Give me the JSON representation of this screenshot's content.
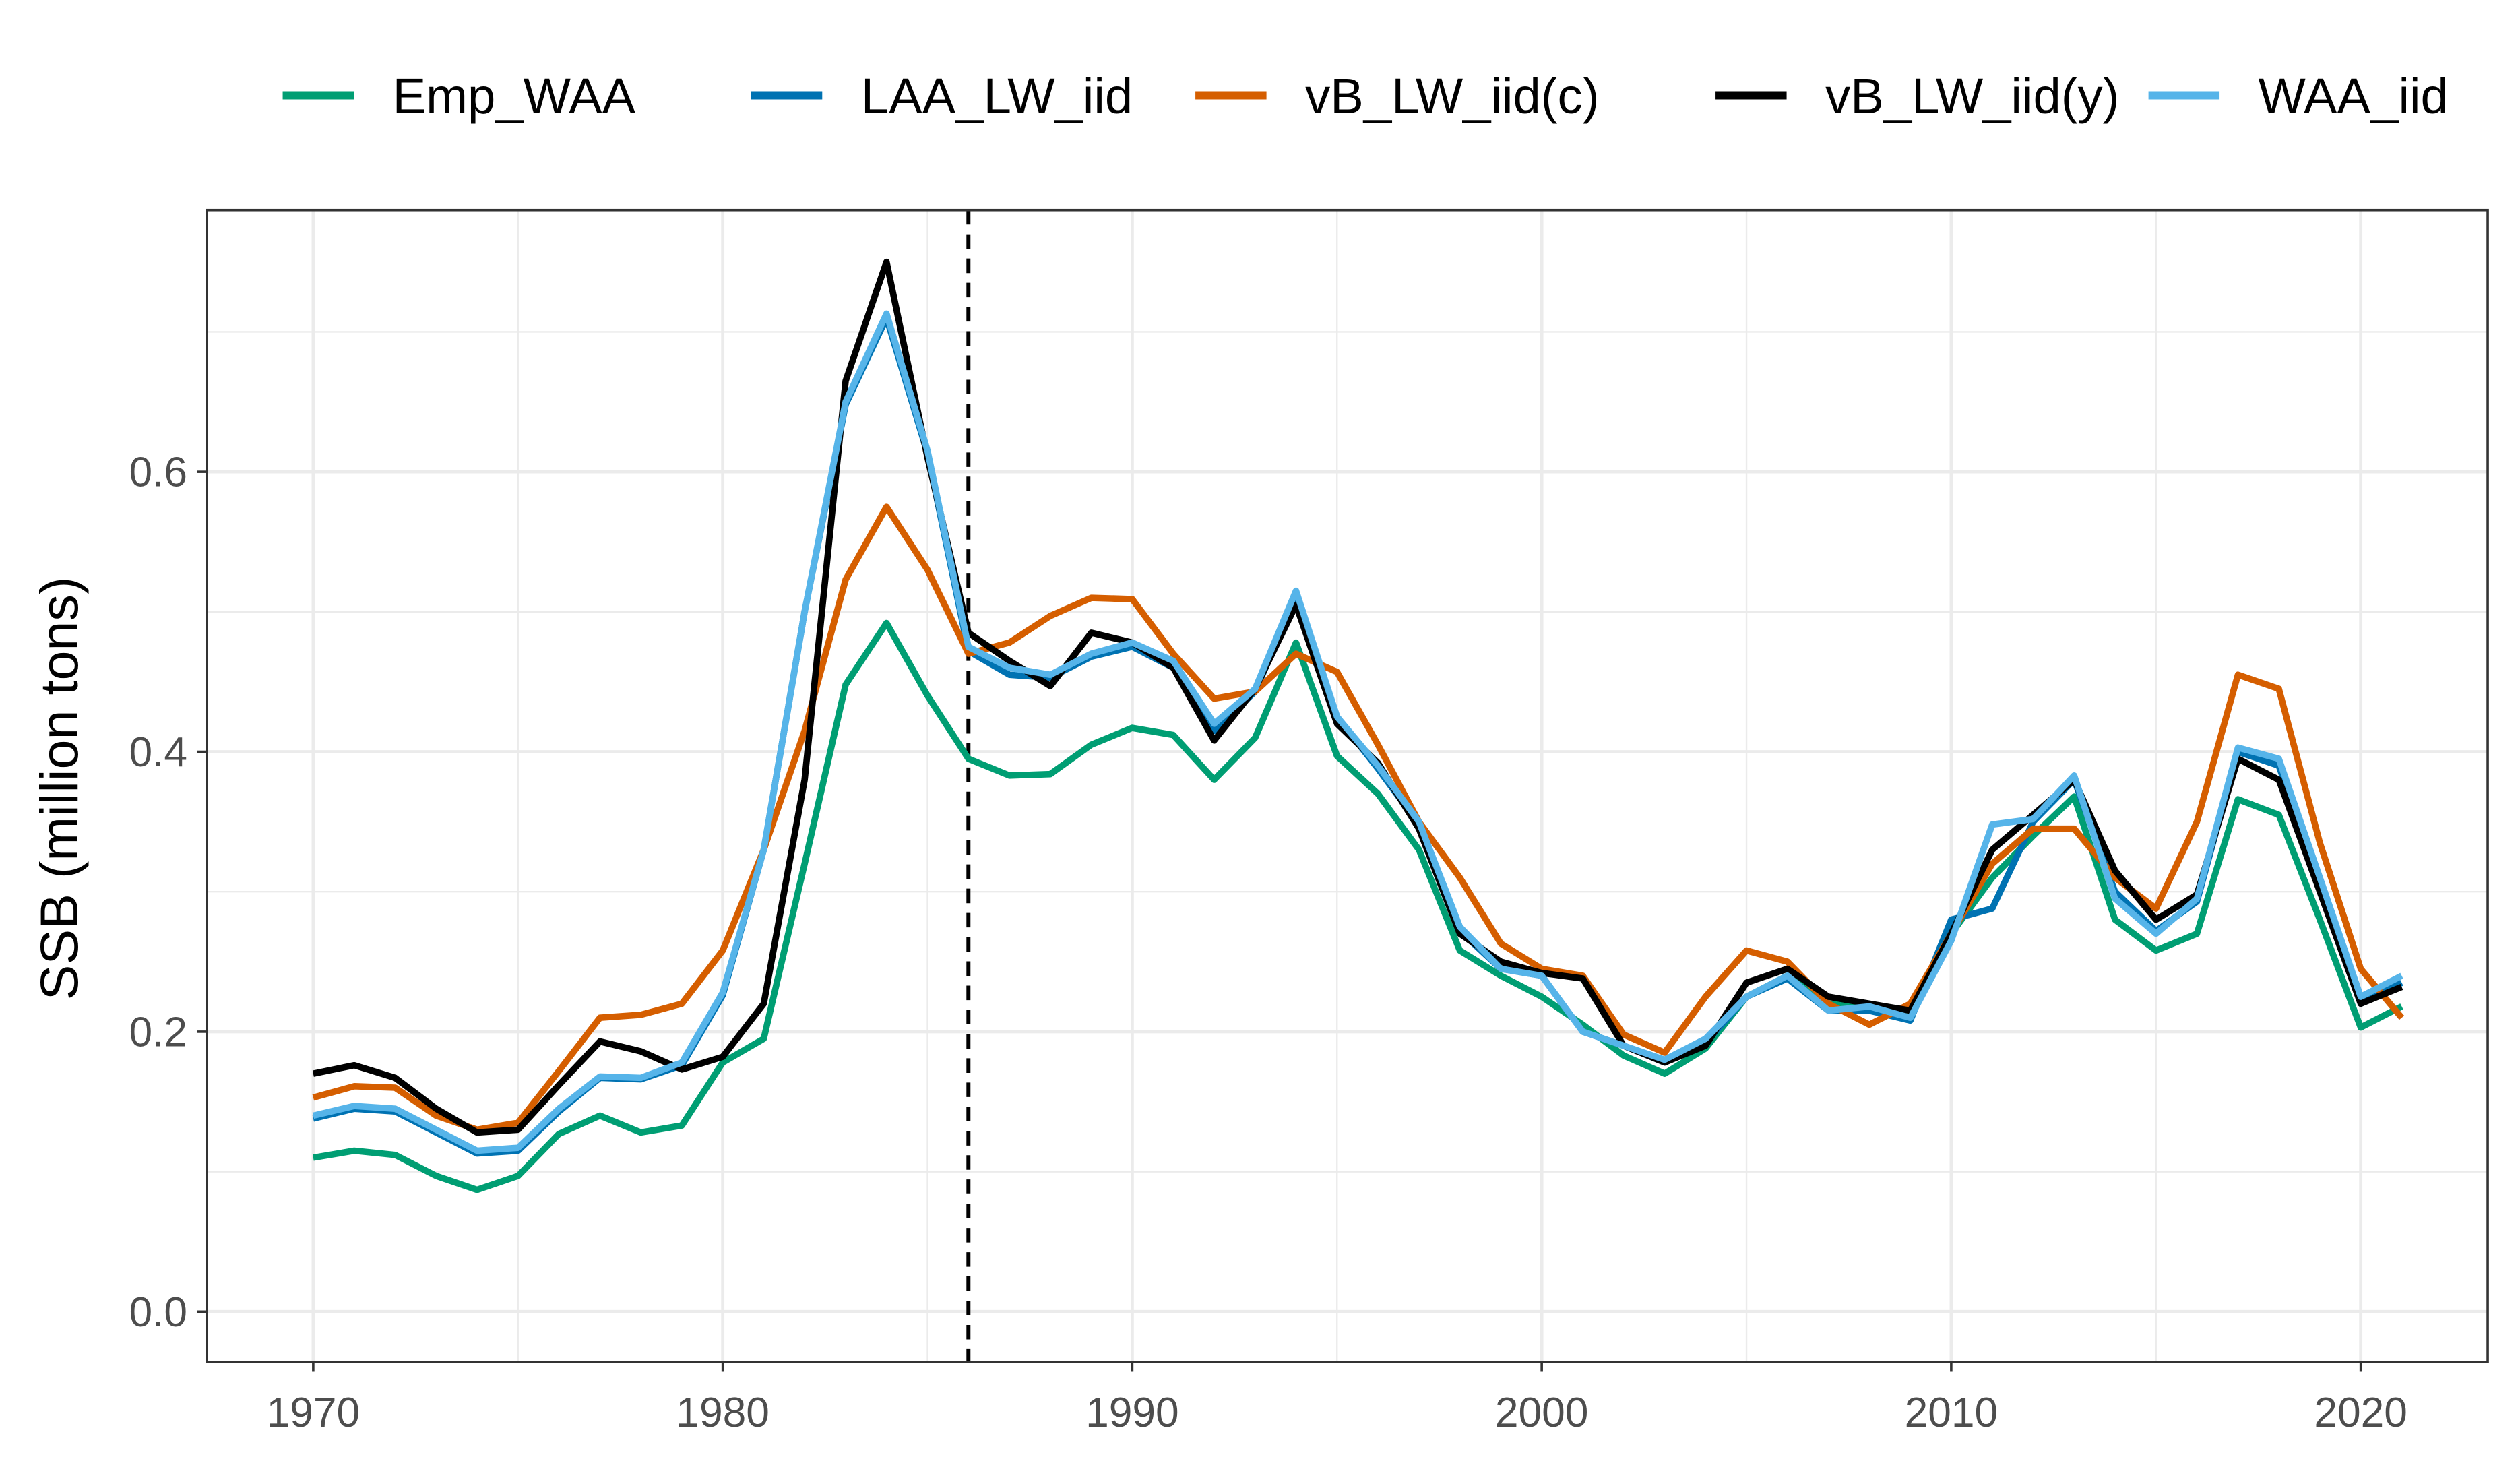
{
  "chart_data": {
    "type": "line",
    "title": "",
    "xlabel": "",
    "ylabel": "SSB (million tons)",
    "xlim": [
      1967.4,
      2023.1
    ],
    "ylim": [
      -0.036,
      0.787
    ],
    "xticks": [
      1970,
      1980,
      1990,
      2000,
      2010,
      2020
    ],
    "xtick_labels": [
      "1970",
      "1980",
      "1990",
      "2000",
      "2010",
      "2020"
    ],
    "yticks": [
      0.0,
      0.2,
      0.4,
      0.6
    ],
    "ytick_labels": [
      "0.0",
      "0.2",
      "0.4",
      "0.6"
    ],
    "grid": true,
    "legend_position": "top",
    "vline": {
      "x": 1986,
      "style": "dashed",
      "color": "#000000"
    },
    "x_start": 1970,
    "series": [
      {
        "name": "Emp_WAA",
        "color": "#009E73",
        "values": [
          0.11,
          0.115,
          0.112,
          0.097,
          0.087,
          0.097,
          0.127,
          0.14,
          0.128,
          0.133,
          0.178,
          0.195,
          0.32,
          0.448,
          0.492,
          0.44,
          0.395,
          0.383,
          0.384,
          0.405,
          0.417,
          0.412,
          0.38,
          0.41,
          0.478,
          0.397,
          0.37,
          0.33,
          0.258,
          0.24,
          0.225,
          0.205,
          0.183,
          0.17,
          0.188,
          0.225,
          0.24,
          0.22,
          0.218,
          0.215,
          0.27,
          0.31,
          0.34,
          0.368,
          0.28,
          0.258,
          0.27,
          0.366,
          0.355,
          0.28,
          0.203,
          0.218
        ]
      },
      {
        "name": "LAA_LW_iid",
        "color": "#0072B2",
        "values": [
          0.138,
          0.145,
          0.143,
          0.128,
          0.113,
          0.115,
          0.143,
          0.167,
          0.166,
          0.176,
          0.226,
          0.33,
          0.5,
          0.648,
          0.71,
          0.613,
          0.472,
          0.455,
          0.453,
          0.468,
          0.475,
          0.46,
          0.415,
          0.443,
          0.51,
          0.425,
          0.388,
          0.348,
          0.272,
          0.245,
          0.24,
          0.2,
          0.19,
          0.178,
          0.192,
          0.225,
          0.238,
          0.215,
          0.215,
          0.208,
          0.28,
          0.288,
          0.35,
          0.38,
          0.3,
          0.272,
          0.293,
          0.4,
          0.39,
          0.305,
          0.22,
          0.235
        ]
      },
      {
        "name": "vB_LW_iid(c)",
        "color": "#D55E00",
        "values": [
          0.153,
          0.161,
          0.16,
          0.14,
          0.13,
          0.135,
          0.172,
          0.21,
          0.212,
          0.22,
          0.258,
          0.33,
          0.415,
          0.523,
          0.575,
          0.53,
          0.47,
          0.478,
          0.497,
          0.51,
          0.509,
          0.47,
          0.438,
          0.443,
          0.47,
          0.457,
          0.405,
          0.35,
          0.31,
          0.263,
          0.245,
          0.24,
          0.198,
          0.185,
          0.225,
          0.258,
          0.25,
          0.22,
          0.205,
          0.22,
          0.27,
          0.32,
          0.345,
          0.345,
          0.31,
          0.288,
          0.35,
          0.455,
          0.445,
          0.335,
          0.245,
          0.21
        ]
      },
      {
        "name": "vB_LW_iid(y)",
        "color": "#000000",
        "values": [
          0.17,
          0.176,
          0.167,
          0.145,
          0.128,
          0.13,
          0.162,
          0.193,
          0.186,
          0.173,
          0.182,
          0.22,
          0.38,
          0.665,
          0.75,
          0.61,
          0.485,
          0.465,
          0.447,
          0.485,
          0.478,
          0.46,
          0.408,
          0.445,
          0.505,
          0.42,
          0.392,
          0.345,
          0.27,
          0.25,
          0.242,
          0.238,
          0.19,
          0.178,
          0.19,
          0.235,
          0.245,
          0.225,
          0.22,
          0.215,
          0.27,
          0.33,
          0.355,
          0.38,
          0.315,
          0.28,
          0.298,
          0.395,
          0.38,
          0.3,
          0.22,
          0.232
        ]
      },
      {
        "name": "WAA_iid",
        "color": "#56B4E9",
        "values": [
          0.14,
          0.147,
          0.145,
          0.13,
          0.115,
          0.117,
          0.145,
          0.168,
          0.167,
          0.178,
          0.228,
          0.33,
          0.5,
          0.65,
          0.713,
          0.615,
          0.475,
          0.46,
          0.455,
          0.47,
          0.478,
          0.465,
          0.42,
          0.445,
          0.515,
          0.425,
          0.39,
          0.35,
          0.275,
          0.245,
          0.24,
          0.2,
          0.19,
          0.18,
          0.195,
          0.225,
          0.24,
          0.215,
          0.218,
          0.21,
          0.265,
          0.348,
          0.352,
          0.383,
          0.295,
          0.27,
          0.295,
          0.403,
          0.395,
          0.31,
          0.225,
          0.24
        ]
      }
    ]
  }
}
